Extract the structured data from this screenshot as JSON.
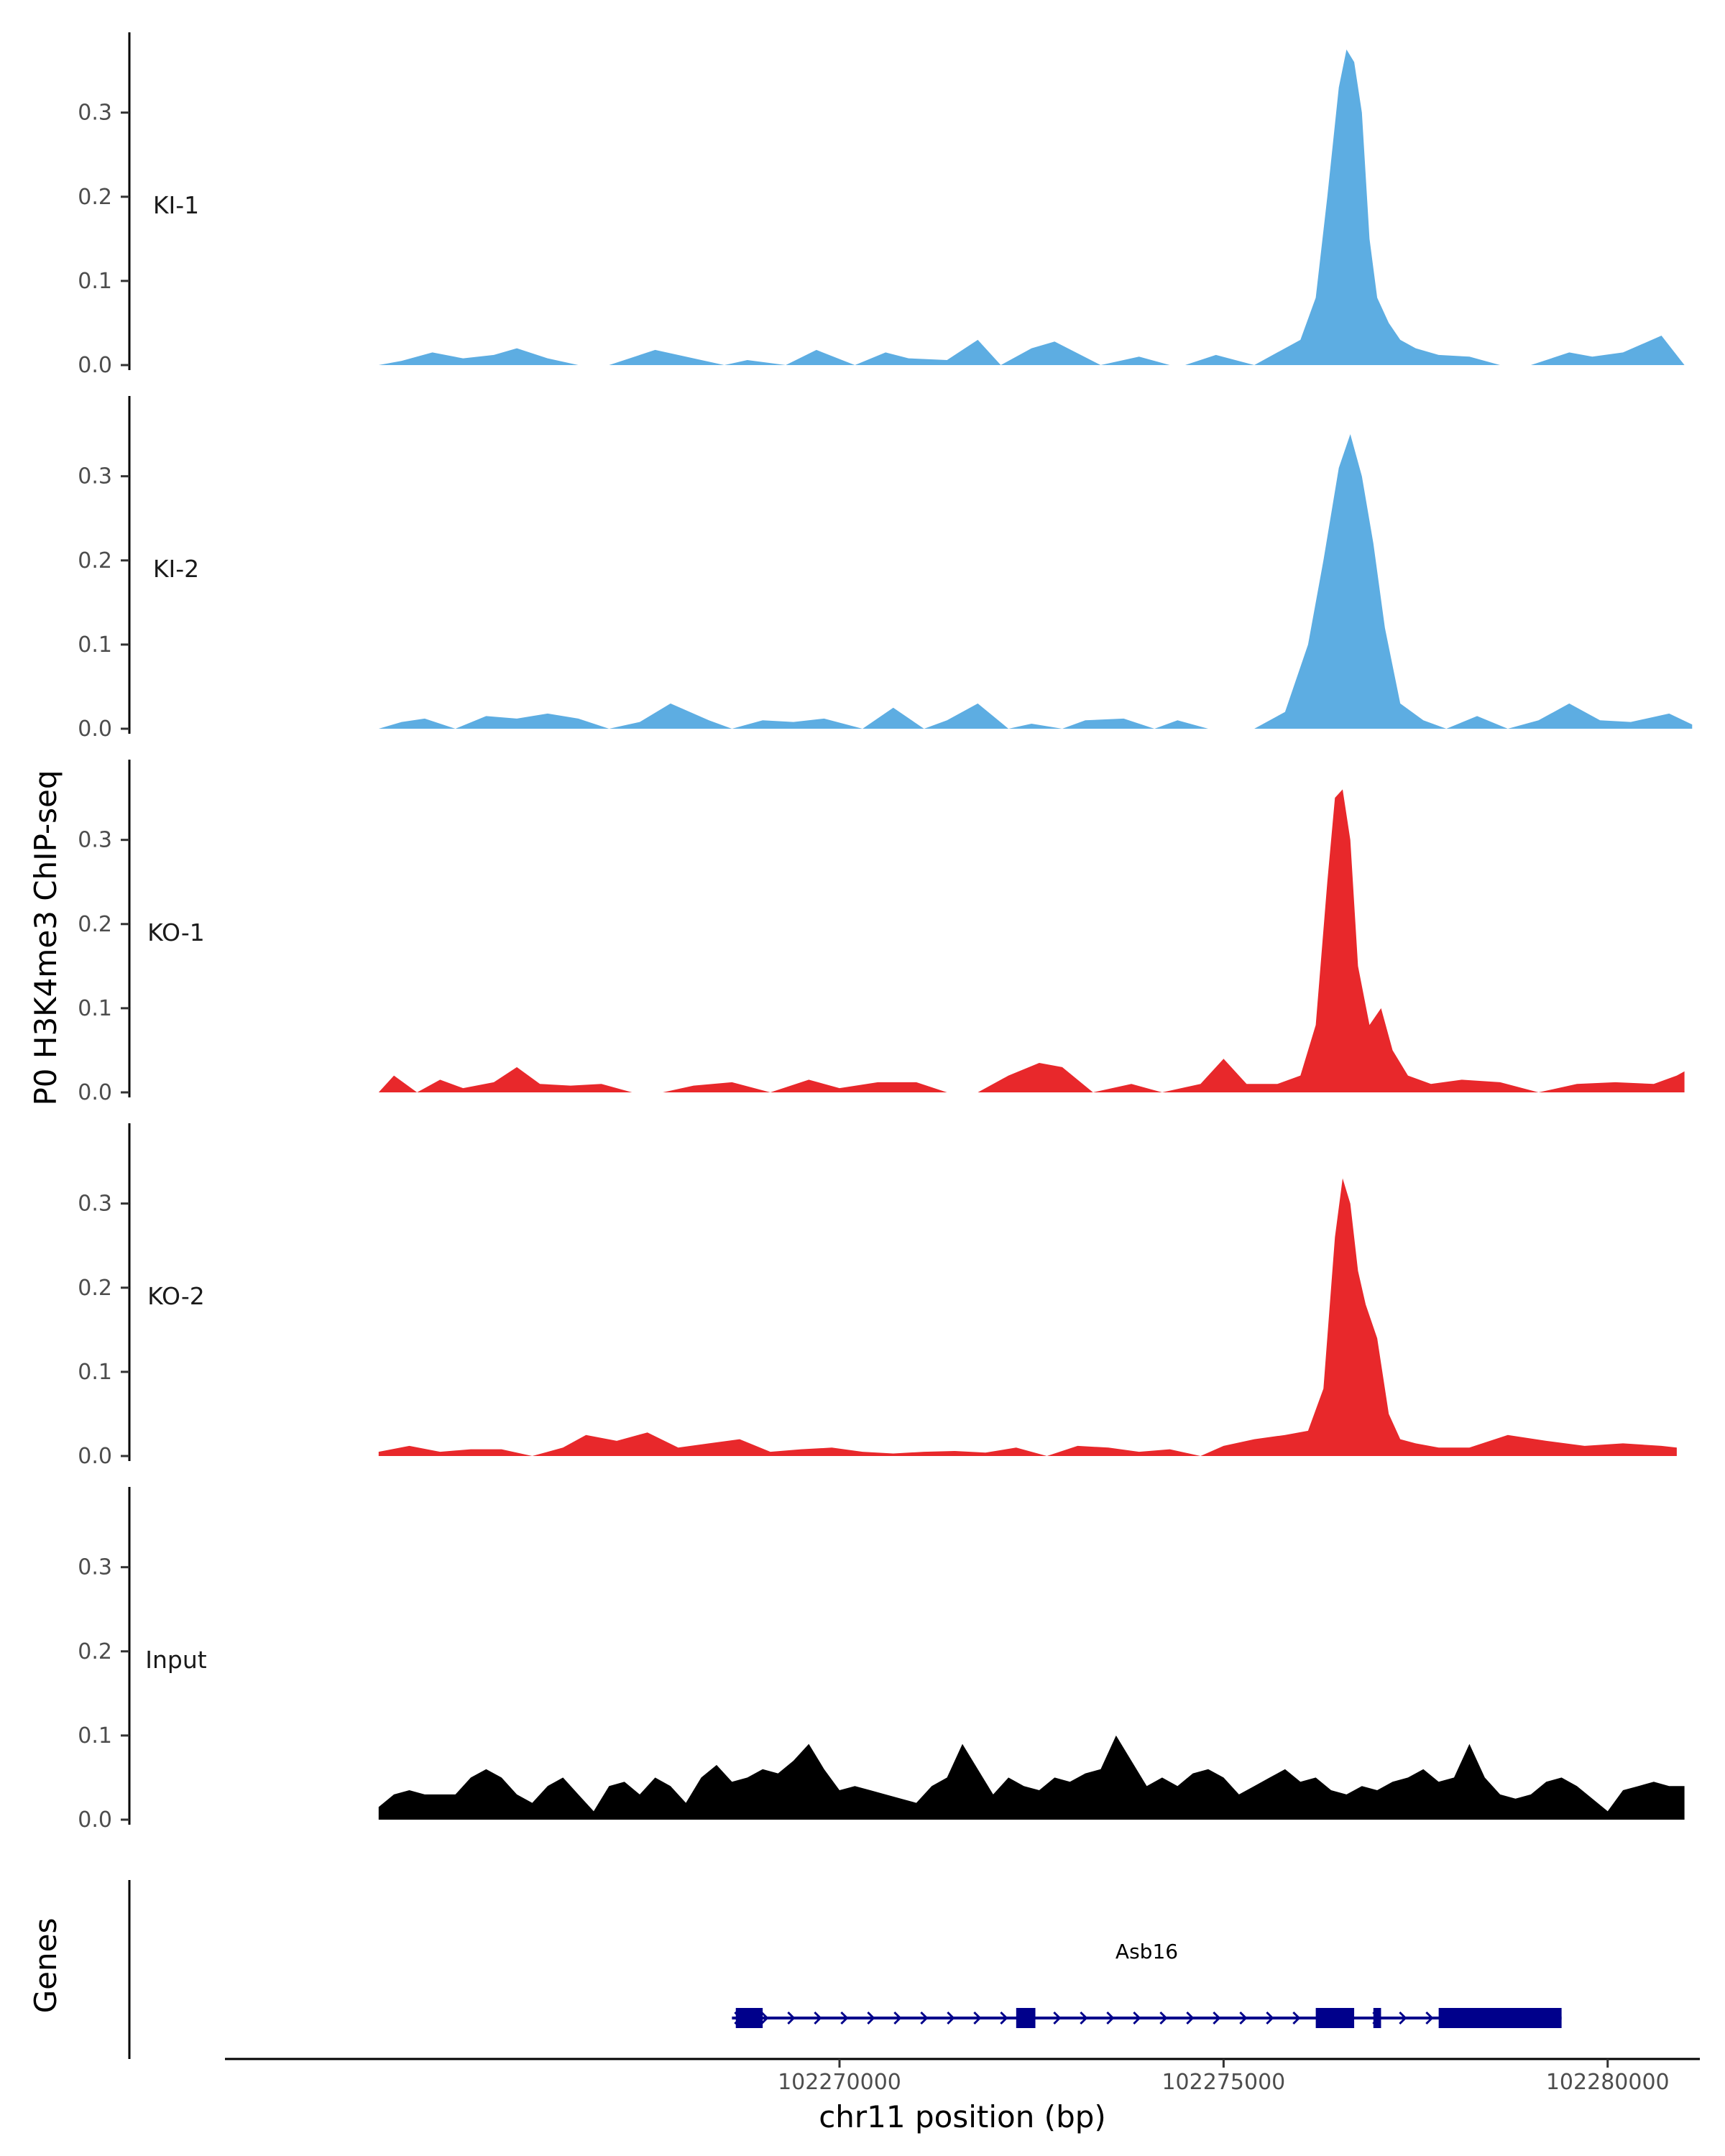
{
  "chart_data": {
    "type": "area",
    "title": "",
    "ylabel": "P0 H3K4me3 ChIP-seq",
    "xlabel": "chr11 position (bp)",
    "xlim": [
      102262000,
      102281200
    ],
    "ylim": [
      0,
      0.38
    ],
    "y_ticks": [
      0.0,
      0.1,
      0.2,
      0.3
    ],
    "y_tick_labels": [
      "0.0",
      "0.1",
      "0.2",
      "0.3"
    ],
    "x_ticks": [
      102270000,
      102275000,
      102280000
    ],
    "x_tick_labels": [
      "102270000",
      "102275000",
      "102280000"
    ],
    "colors": {
      "KI": "#5dade2",
      "KO": "#e8282b",
      "Input": "#000000",
      "gene": "#00008b",
      "axis": "#000000"
    },
    "tracks": [
      {
        "name": "KI-1",
        "color": "#5dade2",
        "x": [
          102264000,
          102264300,
          102264700,
          102265100,
          102265500,
          102265800,
          102266200,
          102266600,
          102267000,
          102267600,
          102268500,
          102268800,
          102269300,
          102269700,
          102270200,
          102270600,
          102270900,
          102271400,
          102271800,
          102272100,
          102272500,
          102272800,
          102273400,
          102273900,
          102274300,
          102274500,
          102274900,
          102275400,
          102275700,
          102276000,
          102276200,
          102276350,
          102276500,
          102276600,
          102276700,
          102276800,
          102276900,
          102277000,
          102277150,
          102277300,
          102277500,
          102277800,
          102278200,
          102278600,
          102279000,
          102279500,
          102279800,
          102280200,
          102280700,
          102281000
        ],
        "values": [
          0.0,
          0.005,
          0.015,
          0.008,
          0.012,
          0.02,
          0.008,
          0.0,
          0.0,
          0.018,
          0.0,
          0.006,
          0.0,
          0.018,
          0.0,
          0.015,
          0.008,
          0.006,
          0.03,
          0.0,
          0.02,
          0.028,
          0.0,
          0.01,
          0.0,
          0.0,
          0.012,
          0.0,
          0.015,
          0.03,
          0.08,
          0.2,
          0.33,
          0.375,
          0.36,
          0.3,
          0.15,
          0.08,
          0.05,
          0.03,
          0.02,
          0.012,
          0.01,
          0.0,
          0.0,
          0.015,
          0.01,
          0.015,
          0.035,
          0.0
        ]
      },
      {
        "name": "KI-2",
        "color": "#5dade2",
        "x": [
          102264000,
          102264300,
          102264600,
          102265000,
          102265400,
          102265800,
          102266200,
          102266600,
          102267000,
          102267400,
          102267800,
          102268300,
          102268600,
          102269000,
          102269400,
          102269800,
          102270300,
          102270700,
          102271100,
          102271400,
          102271800,
          102272200,
          102272500,
          102272900,
          102273200,
          102273700,
          102274100,
          102274400,
          102274800,
          102275400,
          102275800,
          102276100,
          102276300,
          102276500,
          102276650,
          102276800,
          102276950,
          102277100,
          102277300,
          102277600,
          102277900,
          102278300,
          102278700,
          102279100,
          102279500,
          102279900,
          102280300,
          102280800,
          102281100
        ],
        "values": [
          0.0,
          0.008,
          0.012,
          0.0,
          0.015,
          0.012,
          0.018,
          0.012,
          0.0,
          0.008,
          0.03,
          0.01,
          0.0,
          0.01,
          0.008,
          0.012,
          0.0,
          0.025,
          0.0,
          0.01,
          0.03,
          0.0,
          0.006,
          0.0,
          0.01,
          0.012,
          0.0,
          0.01,
          0.0,
          0.0,
          0.02,
          0.1,
          0.2,
          0.31,
          0.35,
          0.3,
          0.22,
          0.12,
          0.03,
          0.01,
          0.0,
          0.015,
          0.0,
          0.01,
          0.03,
          0.01,
          0.008,
          0.018,
          0.005
        ]
      },
      {
        "name": "KO-1",
        "color": "#e8282b",
        "x": [
          102264000,
          102264200,
          102264500,
          102264800,
          102265100,
          102265500,
          102265800,
          102266100,
          102266500,
          102266900,
          102267300,
          102267700,
          102268100,
          102268600,
          102269100,
          102269600,
          102270000,
          102270500,
          102271000,
          102271400,
          102271800,
          102272200,
          102272600,
          102272900,
          102273300,
          102273800,
          102274200,
          102274700,
          102275000,
          102275300,
          102275700,
          102276000,
          102276200,
          102276350,
          102276450,
          102276550,
          102276650,
          102276750,
          102276900,
          102277050,
          102277200,
          102277400,
          102277700,
          102278100,
          102278600,
          102279100,
          102279600,
          102280100,
          102280600,
          102280900,
          102281000
        ],
        "values": [
          0.0,
          0.02,
          0.0,
          0.015,
          0.005,
          0.012,
          0.03,
          0.01,
          0.008,
          0.01,
          0.0,
          0.0,
          0.008,
          0.012,
          0.0,
          0.015,
          0.005,
          0.012,
          0.012,
          0.0,
          0.0,
          0.02,
          0.035,
          0.03,
          0.0,
          0.01,
          0.0,
          0.01,
          0.04,
          0.01,
          0.01,
          0.02,
          0.08,
          0.25,
          0.35,
          0.36,
          0.3,
          0.15,
          0.08,
          0.1,
          0.05,
          0.02,
          0.01,
          0.015,
          0.012,
          0.0,
          0.01,
          0.012,
          0.01,
          0.02,
          0.025
        ]
      },
      {
        "name": "KO-2",
        "color": "#e8282b",
        "x": [
          102264000,
          102264400,
          102264800,
          102265200,
          102265600,
          102266000,
          102266400,
          102266700,
          102267100,
          102267500,
          102267900,
          102268300,
          102268700,
          102269100,
          102269500,
          102269900,
          102270300,
          102270700,
          102271100,
          102271500,
          102271900,
          102272300,
          102272700,
          102273100,
          102273500,
          102273900,
          102274300,
          102274700,
          102275000,
          102275400,
          102275800,
          102276100,
          102276300,
          102276450,
          102276550,
          102276650,
          102276750,
          102276850,
          102277000,
          102277150,
          102277300,
          102277500,
          102277800,
          102278200,
          102278700,
          102279200,
          102279700,
          102280200,
          102280700,
          102280900
        ],
        "values": [
          0.005,
          0.012,
          0.005,
          0.008,
          0.008,
          0.0,
          0.01,
          0.025,
          0.018,
          0.028,
          0.01,
          0.015,
          0.02,
          0.005,
          0.008,
          0.01,
          0.005,
          0.003,
          0.005,
          0.006,
          0.004,
          0.01,
          0.0,
          0.012,
          0.01,
          0.005,
          0.008,
          0.0,
          0.012,
          0.02,
          0.025,
          0.03,
          0.08,
          0.26,
          0.33,
          0.3,
          0.22,
          0.18,
          0.14,
          0.05,
          0.02,
          0.015,
          0.01,
          0.01,
          0.025,
          0.018,
          0.012,
          0.015,
          0.012,
          0.01
        ]
      },
      {
        "name": "Input",
        "color": "#000000",
        "x": [
          102264000,
          102264200,
          102264400,
          102264600,
          102264800,
          102265000,
          102265200,
          102265400,
          102265600,
          102265800,
          102266000,
          102266200,
          102266400,
          102266600,
          102266800,
          102267000,
          102267200,
          102267400,
          102267600,
          102267800,
          102268000,
          102268200,
          102268400,
          102268600,
          102268800,
          102269000,
          102269200,
          102269400,
          102269600,
          102269800,
          102270000,
          102270200,
          102270400,
          102270600,
          102270800,
          102271000,
          102271200,
          102271400,
          102271600,
          102271800,
          102272000,
          102272200,
          102272400,
          102272600,
          102272800,
          102273000,
          102273200,
          102273400,
          102273600,
          102273800,
          102274000,
          102274200,
          102274400,
          102274600,
          102274800,
          102275000,
          102275200,
          102275400,
          102275600,
          102275800,
          102276000,
          102276200,
          102276400,
          102276600,
          102276800,
          102277000,
          102277200,
          102277400,
          102277600,
          102277800,
          102278000,
          102278200,
          102278400,
          102278600,
          102278800,
          102279000,
          102279200,
          102279400,
          102279600,
          102279800,
          102280000,
          102280200,
          102280400,
          102280600,
          102280800,
          102281000
        ],
        "values": [
          0.015,
          0.03,
          0.035,
          0.03,
          0.03,
          0.03,
          0.05,
          0.06,
          0.05,
          0.03,
          0.02,
          0.04,
          0.05,
          0.03,
          0.01,
          0.04,
          0.045,
          0.03,
          0.05,
          0.04,
          0.02,
          0.05,
          0.065,
          0.045,
          0.05,
          0.06,
          0.055,
          0.07,
          0.09,
          0.06,
          0.035,
          0.04,
          0.035,
          0.03,
          0.025,
          0.02,
          0.04,
          0.05,
          0.09,
          0.06,
          0.03,
          0.05,
          0.04,
          0.035,
          0.05,
          0.045,
          0.055,
          0.06,
          0.1,
          0.07,
          0.04,
          0.05,
          0.04,
          0.055,
          0.06,
          0.05,
          0.03,
          0.04,
          0.05,
          0.06,
          0.045,
          0.05,
          0.035,
          0.03,
          0.04,
          0.035,
          0.045,
          0.05,
          0.06,
          0.045,
          0.05,
          0.09,
          0.05,
          0.03,
          0.025,
          0.03,
          0.045,
          0.05,
          0.04,
          0.025,
          0.01,
          0.035,
          0.04,
          0.045,
          0.04,
          0.04
        ]
      }
    ],
    "gene_track": {
      "label": "Genes",
      "gene_name": "Asb16",
      "strand": "+",
      "start": 102268600,
      "end": 102279400,
      "exons": [
        [
          102268650,
          102269000
        ],
        [
          102272300,
          102272550
        ],
        [
          102276200,
          102276700
        ],
        [
          102276950,
          102277050
        ],
        [
          102277800,
          102279400
        ]
      ]
    }
  }
}
